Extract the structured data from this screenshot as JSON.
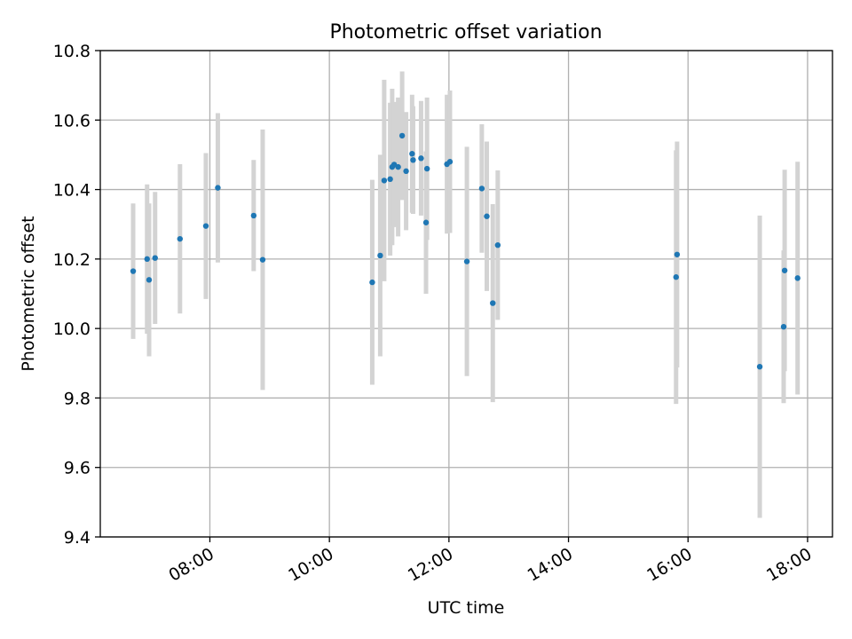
{
  "chart_data": {
    "type": "scatter",
    "title": "Photometric offset variation",
    "xlabel": "UTC time",
    "ylabel": "Photometric offset",
    "xlim": [
      "06:10",
      "18:25"
    ],
    "ylim": [
      9.4,
      10.8
    ],
    "x_ticks": [
      "08:00",
      "10:00",
      "12:00",
      "14:00",
      "16:00",
      "18:00"
    ],
    "y_ticks": [
      "9.4",
      "9.6",
      "9.8",
      "10.0",
      "10.2",
      "10.4",
      "10.6",
      "10.8"
    ],
    "grid": true,
    "colors": {
      "point": "#1f77b4",
      "errorbar": "#d3d3d3",
      "grid": "#b0b0b0",
      "axis": "#000000"
    },
    "series": [
      {
        "points": [
          {
            "x": "06:43",
            "y": 10.165,
            "err": 0.195
          },
          {
            "x": "06:57",
            "y": 10.2,
            "err": 0.215
          },
          {
            "x": "06:59",
            "y": 10.14,
            "err": 0.22
          },
          {
            "x": "07:05",
            "y": 10.203,
            "err": 0.19
          },
          {
            "x": "07:30",
            "y": 10.258,
            "err": 0.215
          },
          {
            "x": "07:56",
            "y": 10.295,
            "err": 0.21
          },
          {
            "x": "08:08",
            "y": 10.405,
            "err": 0.215
          },
          {
            "x": "08:44",
            "y": 10.325,
            "err": 0.16
          },
          {
            "x": "08:53",
            "y": 10.198,
            "err": 0.375
          },
          {
            "x": "10:43",
            "y": 10.133,
            "err": 0.295
          },
          {
            "x": "10:51",
            "y": 10.21,
            "err": 0.29
          },
          {
            "x": "10:55",
            "y": 10.426,
            "err": 0.29
          },
          {
            "x": "11:01",
            "y": 10.43,
            "err": 0.22
          },
          {
            "x": "11:03",
            "y": 10.465,
            "err": 0.225
          },
          {
            "x": "11:05",
            "y": 10.472,
            "err": 0.18
          },
          {
            "x": "11:09",
            "y": 10.465,
            "err": 0.2
          },
          {
            "x": "11:13",
            "y": 10.555,
            "err": 0.185
          },
          {
            "x": "11:17",
            "y": 10.453,
            "err": 0.17
          },
          {
            "x": "11:23",
            "y": 10.503,
            "err": 0.17
          },
          {
            "x": "11:24",
            "y": 10.485,
            "err": 0.155
          },
          {
            "x": "11:32",
            "y": 10.49,
            "err": 0.165
          },
          {
            "x": "11:37",
            "y": 10.305,
            "err": 0.205
          },
          {
            "x": "11:38",
            "y": 10.46,
            "err": 0.205
          },
          {
            "x": "11:58",
            "y": 10.473,
            "err": 0.2
          },
          {
            "x": "12:01",
            "y": 10.48,
            "err": 0.205
          },
          {
            "x": "12:18",
            "y": 10.193,
            "err": 0.33
          },
          {
            "x": "12:33",
            "y": 10.403,
            "err": 0.185
          },
          {
            "x": "12:38",
            "y": 10.323,
            "err": 0.215
          },
          {
            "x": "12:44",
            "y": 10.073,
            "err": 0.285
          },
          {
            "x": "12:49",
            "y": 10.24,
            "err": 0.215
          },
          {
            "x": "15:48",
            "y": 10.148,
            "err": 0.365
          },
          {
            "x": "15:49",
            "y": 10.213,
            "err": 0.325
          },
          {
            "x": "17:12",
            "y": 9.89,
            "err": 0.435
          },
          {
            "x": "17:36",
            "y": 10.005,
            "err": 0.22
          },
          {
            "x": "17:37",
            "y": 10.167,
            "err": 0.29
          },
          {
            "x": "17:50",
            "y": 10.145,
            "err": 0.335
          }
        ]
      }
    ]
  }
}
